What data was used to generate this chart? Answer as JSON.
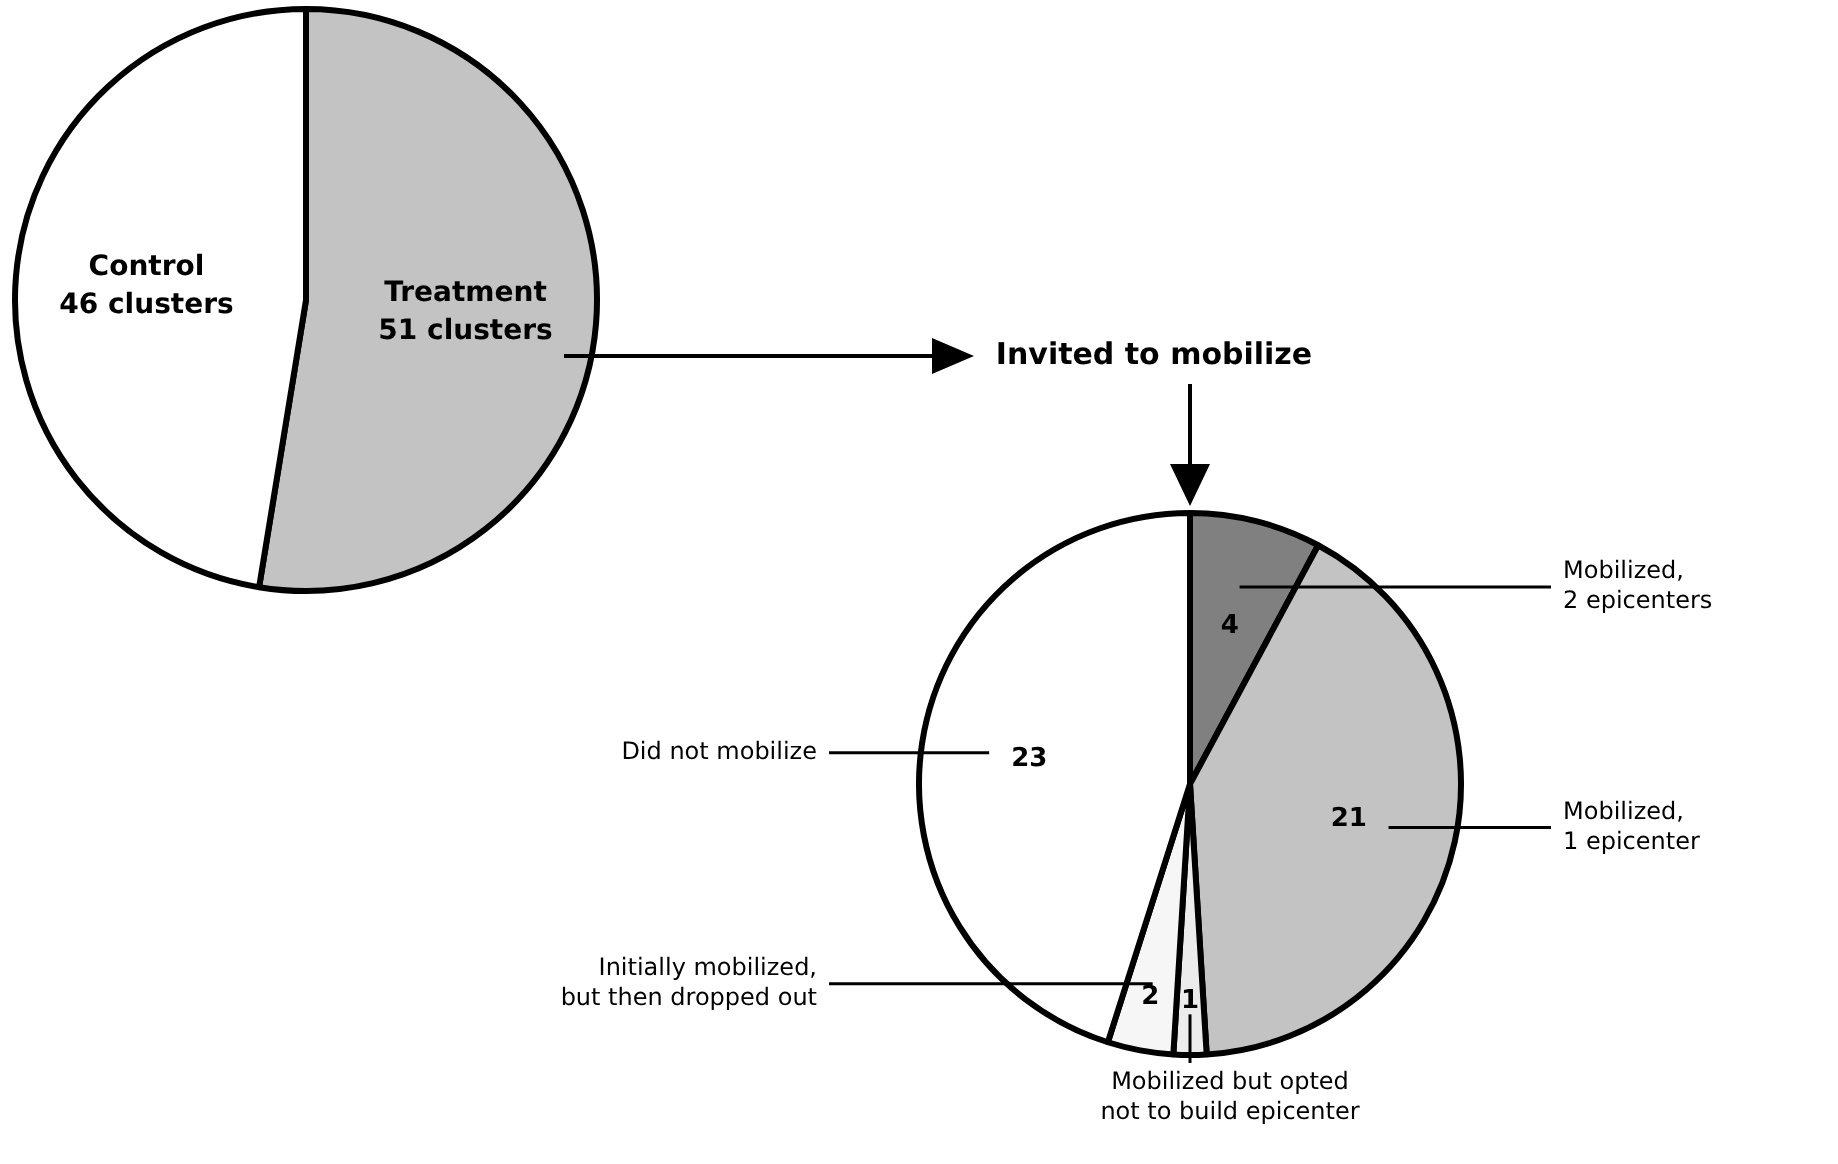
{
  "chart_data": [
    {
      "type": "pie",
      "categories": [
        "Treatment",
        "Control"
      ],
      "values": [
        51,
        46
      ],
      "colors": [
        "#c3c3c3",
        "#ffffff"
      ],
      "value_labels": [
        "51 clusters",
        "46 clusters"
      ]
    },
    {
      "type": "pie",
      "title": "Invited to mobilize",
      "categories": [
        "Mobilized,\n2 epicenters",
        "Mobilized,\n1 epicenter",
        "Mobilized but opted\nnot to build epicenter",
        "Initially mobilized,\nbut then dropped out",
        "Did not mobilize"
      ],
      "values": [
        4,
        21,
        1,
        2,
        23
      ],
      "colors": [
        "#808080",
        "#c3c3c3",
        "#ececec",
        "#f6f6f6",
        "#ffffff"
      ],
      "data_labels": true
    }
  ]
}
